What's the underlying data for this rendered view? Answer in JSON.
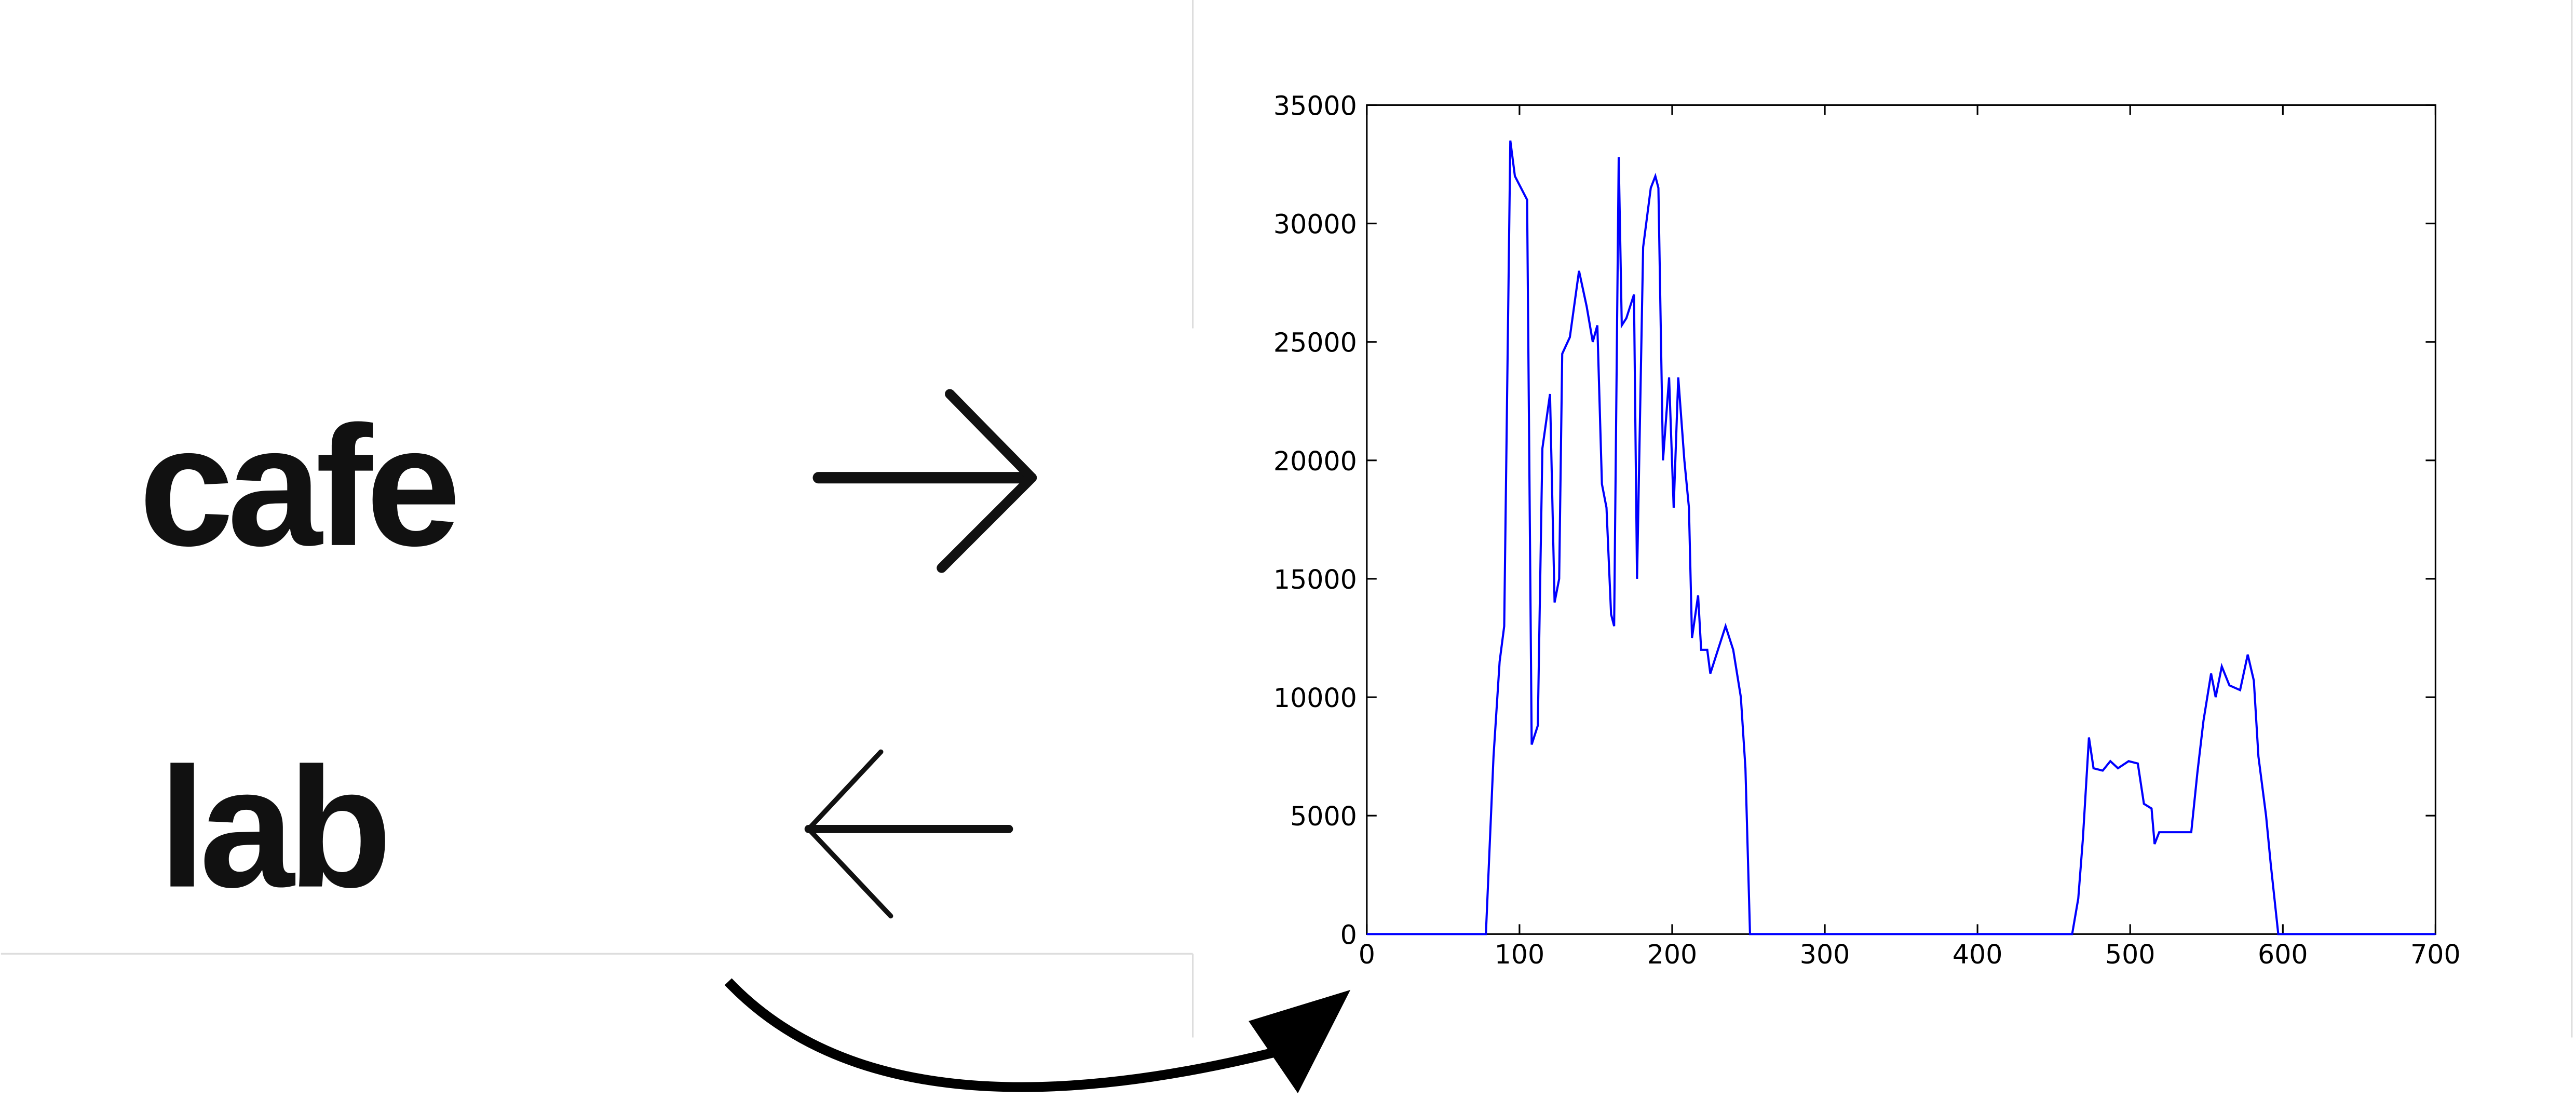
{
  "image_words": [
    "cafe",
    "lab"
  ],
  "chart_data": {
    "type": "line",
    "x": [
      0,
      78,
      83,
      87,
      90,
      94,
      97,
      101,
      105,
      108,
      112,
      115,
      120,
      123,
      126,
      128,
      133,
      139,
      144,
      148,
      151,
      154,
      157,
      160,
      162,
      165,
      167,
      170,
      175,
      177,
      181,
      186,
      189,
      191,
      194,
      198,
      201,
      204,
      208,
      211,
      213,
      217,
      219,
      223,
      225,
      230,
      235,
      240,
      245,
      248,
      251,
      462,
      466,
      469,
      473,
      476,
      482,
      487,
      492,
      499,
      505,
      509,
      514,
      516,
      519,
      540,
      544,
      548,
      553,
      556,
      560,
      565,
      572,
      577,
      581,
      584,
      589,
      592,
      597,
      700
    ],
    "series": [
      {
        "color": "#0000ff",
        "values": [
          0,
          0,
          7500,
          11500,
          13000,
          33500,
          32000,
          31500,
          31000,
          8000,
          8800,
          20500,
          22800,
          14000,
          15000,
          24500,
          25200,
          28000,
          26500,
          25000,
          25700,
          19000,
          18000,
          13500,
          13000,
          32800,
          25700,
          26000,
          27000,
          15000,
          29000,
          31500,
          32000,
          31500,
          20000,
          23500,
          18000,
          23500,
          20000,
          18000,
          12500,
          14300,
          12000,
          12000,
          11000,
          12000,
          13000,
          12000,
          10000,
          7000,
          0,
          0,
          1500,
          4000,
          8300,
          7000,
          6900,
          7300,
          7000,
          7300,
          7200,
          5500,
          5300,
          3800,
          4300,
          4300,
          6800,
          9000,
          11000,
          10000,
          11300,
          10500,
          10300,
          11800,
          10700,
          7500,
          5000,
          3000,
          0,
          0
        ]
      }
    ],
    "xlim": [
      0,
      700
    ],
    "xticks": [
      0,
      100,
      200,
      300,
      400,
      500,
      600,
      700
    ],
    "ylim": [
      0,
      35000
    ],
    "yticks": [
      0,
      5000,
      10000,
      15000,
      20000,
      25000,
      30000,
      35000
    ]
  }
}
